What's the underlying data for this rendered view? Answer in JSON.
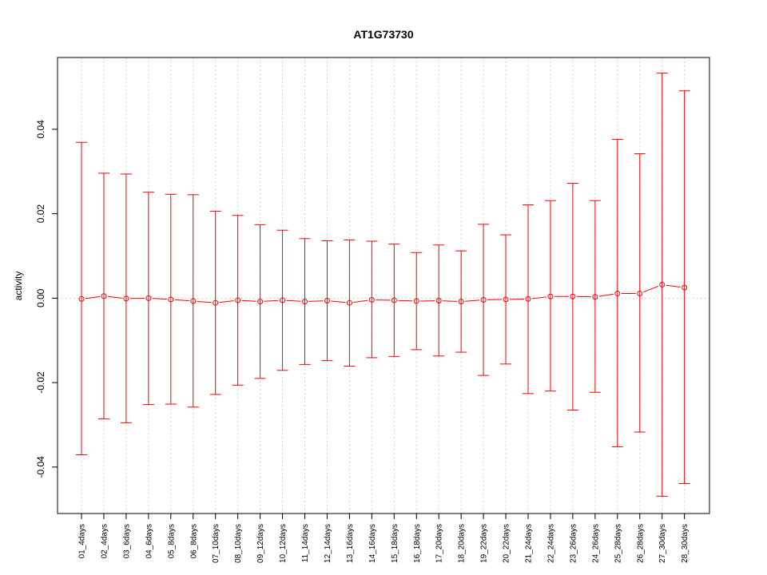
{
  "chart_data": {
    "type": "line",
    "title": "AT1G73730",
    "xlabel": "",
    "ylabel": "activity",
    "ylim": [
      -0.051,
      0.057
    ],
    "yticks": [
      -0.04,
      -0.02,
      0.0,
      0.02,
      0.04
    ],
    "ytick_labels": [
      "-0.04",
      "-0.02",
      "0.00",
      "0.02",
      "0.04"
    ],
    "grid": true,
    "reference_line": 0.0,
    "series_color": "#ff0000",
    "grid_color": "#d3d3d3",
    "categories": [
      "01_4days",
      "02_4days",
      "03_6days",
      "04_6days",
      "05_8days",
      "06_8days",
      "07_10days",
      "08_10days",
      "09_12days",
      "10_12days",
      "11_14days",
      "12_14days",
      "13_16days",
      "14_16days",
      "15_18days",
      "16_18days",
      "17_20days",
      "18_20days",
      "19_22days",
      "20_22days",
      "21_24days",
      "22_24days",
      "23_26days",
      "24_26days",
      "25_28days",
      "26_28days",
      "27_30days",
      "28_30days"
    ],
    "series": [
      {
        "values": [
          -0.0002,
          0.0005,
          -0.0001,
          0.0,
          -0.0003,
          -0.0007,
          -0.0011,
          -0.0005,
          -0.0008,
          -0.0005,
          -0.0008,
          -0.0006,
          -0.0011,
          -0.0004,
          -0.0005,
          -0.0007,
          -0.0006,
          -0.0008,
          -0.0004,
          -0.0003,
          -0.0002,
          0.0004,
          0.0004,
          0.0003,
          0.0011,
          0.0011,
          0.0032,
          0.0025
        ],
        "upper": [
          0.0369,
          0.0296,
          0.0294,
          0.0251,
          0.0246,
          0.0245,
          0.0206,
          0.0196,
          0.0174,
          0.0161,
          0.0141,
          0.0136,
          0.0138,
          0.0135,
          0.0128,
          0.0108,
          0.0126,
          0.0112,
          0.0175,
          0.015,
          0.0221,
          0.0231,
          0.0272,
          0.0231,
          0.0376,
          0.0342,
          0.0533,
          0.0491
        ],
        "lower": [
          -0.0371,
          -0.0286,
          -0.0295,
          -0.0252,
          -0.0251,
          -0.0258,
          -0.0228,
          -0.0206,
          -0.019,
          -0.0171,
          -0.0157,
          -0.0148,
          -0.0161,
          -0.0141,
          -0.0138,
          -0.0122,
          -0.0137,
          -0.0128,
          -0.0183,
          -0.0156,
          -0.0226,
          -0.022,
          -0.0265,
          -0.0223,
          -0.0352,
          -0.0317,
          -0.0469,
          -0.0439
        ]
      }
    ]
  }
}
